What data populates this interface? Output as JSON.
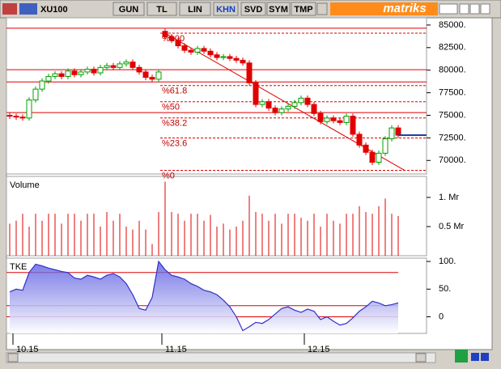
{
  "toolbar": {
    "symbol": "XU100",
    "buttons": [
      "GUN",
      "TL",
      "LIN",
      "KHN",
      "SVD",
      "SYM",
      "TMP"
    ],
    "brand": "matriks"
  },
  "chart_data": [
    {
      "type": "candlestick",
      "categories": [
        null,
        "10.15",
        null,
        null,
        null,
        null,
        null,
        null,
        null,
        null,
        null,
        null,
        null,
        null,
        null,
        null,
        null,
        null,
        null,
        null,
        null,
        null,
        null,
        null,
        "11.15",
        null,
        null,
        null,
        null,
        null,
        null,
        null,
        null,
        null,
        null,
        null,
        null,
        null,
        null,
        null,
        null,
        null,
        null,
        null,
        null,
        null,
        "12.15",
        null,
        null,
        null,
        null,
        null,
        null,
        null,
        null,
        null,
        null,
        null,
        null,
        null,
        null
      ],
      "open": [
        75000,
        74900,
        74800,
        74700,
        76700,
        77900,
        78800,
        79300,
        79600,
        79300,
        79900,
        79500,
        79800,
        80100,
        79700,
        80300,
        80500,
        80300,
        80700,
        80900,
        80300,
        79800,
        79200,
        79000,
        84300,
        83700,
        83300,
        82700,
        82200,
        82000,
        82400,
        82100,
        81700,
        81400,
        81500,
        81300,
        81100,
        80800,
        78600,
        76200,
        76500,
        75800,
        75300,
        75700,
        76000,
        76400,
        76900,
        76200,
        75200,
        74300,
        74700,
        74400,
        74200,
        74900,
        72900,
        71700,
        70900,
        69800,
        70800,
        72400,
        73600
      ],
      "high": [
        75300,
        75200,
        75100,
        77000,
        78200,
        79100,
        79600,
        79900,
        79900,
        80200,
        80200,
        80100,
        80400,
        80400,
        80600,
        80800,
        80800,
        81000,
        81200,
        81200,
        80600,
        80100,
        79500,
        80100,
        84600,
        84000,
        83600,
        83000,
        82500,
        82700,
        82700,
        82400,
        82000,
        81800,
        81800,
        81600,
        81400,
        81100,
        78900,
        76800,
        76800,
        76100,
        76000,
        76300,
        76700,
        77200,
        77200,
        76500,
        75500,
        75000,
        75000,
        74700,
        75200,
        75200,
        73200,
        72000,
        71200,
        71100,
        72700,
        73900,
        73900
      ],
      "low": [
        74600,
        74500,
        74400,
        74400,
        76400,
        77600,
        78500,
        79000,
        79000,
        79000,
        79200,
        79200,
        79500,
        79400,
        79400,
        80000,
        80000,
        80000,
        80400,
        80000,
        79500,
        78900,
        78700,
        78700,
        83400,
        83000,
        82400,
        81900,
        81700,
        81700,
        81800,
        81400,
        81100,
        81100,
        81000,
        80800,
        80500,
        78300,
        75900,
        75900,
        75500,
        75000,
        75000,
        75400,
        75700,
        76100,
        75900,
        74900,
        74000,
        74000,
        74100,
        73900,
        73900,
        72600,
        71400,
        70600,
        69500,
        69500,
        70500,
        72100,
        72500
      ],
      "close": [
        74900,
        74800,
        74700,
        76700,
        77900,
        78800,
        79300,
        79600,
        79300,
        79900,
        79500,
        79800,
        80100,
        79700,
        80300,
        80500,
        80300,
        80700,
        80900,
        80300,
        79800,
        79200,
        79000,
        79800,
        83700,
        83300,
        82700,
        82200,
        82000,
        82400,
        82100,
        81700,
        81400,
        81500,
        81300,
        81100,
        80800,
        78600,
        76200,
        76500,
        75800,
        75300,
        75700,
        76000,
        76400,
        76900,
        76200,
        75200,
        74300,
        74700,
        74400,
        74200,
        74900,
        72900,
        71700,
        70900,
        69800,
        70800,
        72400,
        73600,
        72800
      ],
      "up_color": "#00a000",
      "down_color": "#e00000",
      "ylim": [
        68500,
        85800
      ],
      "yticks": [
        {
          "value": 85000,
          "label": "85000."
        },
        {
          "value": 82500,
          "label": "82500."
        },
        {
          "value": 80000,
          "label": "80000."
        },
        {
          "value": 77500,
          "label": "77500."
        },
        {
          "value": 75000,
          "label": "75000."
        },
        {
          "value": 72500,
          "label": "72500."
        },
        {
          "value": 70000,
          "label": "70000."
        }
      ],
      "levels": [
        84650,
        80050,
        78700,
        75300
      ],
      "fibonacci": {
        "high": 84100,
        "low": 68900,
        "start": 24,
        "levels": [
          {
            "value": 100,
            "label": "%100"
          },
          {
            "value": 61.8,
            "label": "%61.8"
          },
          {
            "value": 50,
            "label": "%50"
          },
          {
            "value": 38.2,
            "label": "%38.2"
          },
          {
            "value": 23.6,
            "label": "%23.6"
          },
          {
            "value": 0,
            "label": "%0"
          }
        ]
      },
      "trendline": {
        "x": [
          24,
          61
        ],
        "values": [
          84100,
          68900
        ]
      }
    },
    {
      "type": "bar",
      "title": "Volume",
      "color": "#e00000",
      "values": [
        0.55,
        0.6,
        0.72,
        0.5,
        0.72,
        0.6,
        0.72,
        0.72,
        0.55,
        0.72,
        0.72,
        0.6,
        0.72,
        0.72,
        0.5,
        0.75,
        0.6,
        0.72,
        0.5,
        0.45,
        0.6,
        0.45,
        0.2,
        0.75,
        1.27,
        0.75,
        0.72,
        0.6,
        0.72,
        0.72,
        0.6,
        0.7,
        0.5,
        0.55,
        0.45,
        0.5,
        0.6,
        1.03,
        0.75,
        0.72,
        0.6,
        0.72,
        0.55,
        0.72,
        0.72,
        0.65,
        0.6,
        0.72,
        0.5,
        0.72,
        0.6,
        0.55,
        0.72,
        0.72,
        0.85,
        0.75,
        0.72,
        0.85,
        0.98,
        0.72,
        0.68
      ],
      "ylim": [
        0,
        1.36
      ],
      "yticks": [
        {
          "value": 1,
          "label": "1. Mr"
        },
        {
          "value": 0.5,
          "label": "0.5 Mr"
        }
      ]
    },
    {
      "type": "area",
      "title": "TKE",
      "color": "#3030c8",
      "values": [
        45,
        50,
        48,
        80,
        95,
        92,
        88,
        85,
        82,
        80,
        70,
        68,
        75,
        72,
        68,
        75,
        78,
        72,
        60,
        40,
        15,
        12,
        35,
        100,
        85,
        75,
        72,
        68,
        60,
        55,
        48,
        45,
        40,
        30,
        18,
        0,
        -25,
        -18,
        -10,
        -12,
        -5,
        5,
        15,
        18,
        12,
        8,
        14,
        10,
        -5,
        0,
        -8,
        -15,
        -12,
        -2,
        10,
        18,
        28,
        25,
        20,
        22,
        25
      ],
      "ylim": [
        -30,
        106
      ],
      "yticks": [
        {
          "value": 100,
          "label": "100."
        },
        {
          "value": 50,
          "label": "50."
        },
        0
      ],
      "hlines": [
        80,
        20,
        0
      ]
    }
  ]
}
